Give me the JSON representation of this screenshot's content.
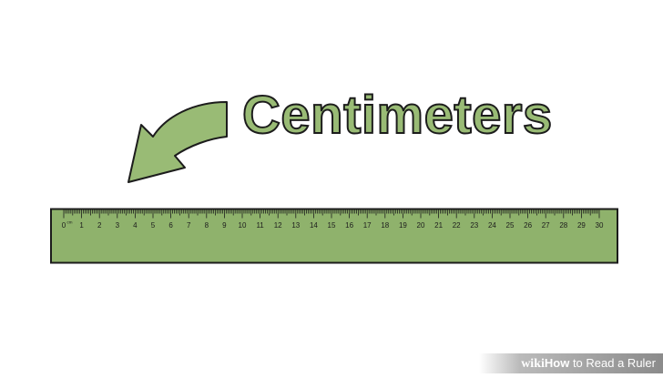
{
  "title": "Centimeters",
  "ruler": {
    "unit": "cm",
    "numbers": [
      "0",
      "1",
      "2",
      "3",
      "4",
      "5",
      "6",
      "7",
      "8",
      "9",
      "10",
      "11",
      "12",
      "13",
      "14",
      "15",
      "16",
      "17",
      "18",
      "19",
      "20",
      "21",
      "22",
      "23",
      "24",
      "25",
      "26",
      "27",
      "28",
      "29",
      "30"
    ]
  },
  "watermark": {
    "brand": "wiki",
    "how": "How",
    "rest": " to Read a Ruler"
  },
  "colors": {
    "green_fill": "#99bb75",
    "ruler_fill": "#8fb26c",
    "outline": "#1c1c1c"
  },
  "icons": [
    "curved-arrow-icon"
  ]
}
